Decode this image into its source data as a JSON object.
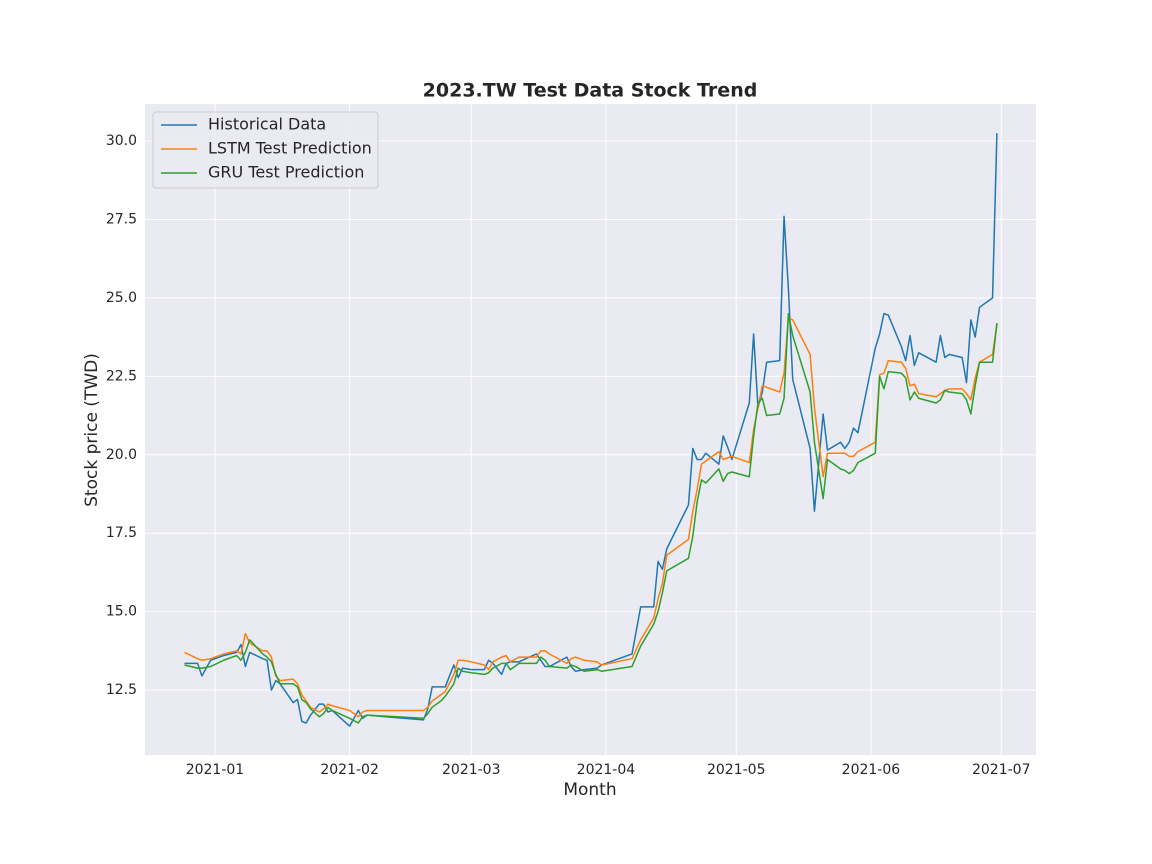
{
  "chart_data": {
    "type": "line",
    "title": "2023.TW  Test Data Stock Trend",
    "x_label": "Month",
    "y_label": "Stock price (TWD)",
    "grid": true,
    "legend": "upper left",
    "xlim": [
      -16.1,
      189.0
    ],
    "xticks": [
      {
        "value": 0,
        "label": "2021-01"
      },
      {
        "value": 31,
        "label": "2021-02"
      },
      {
        "value": 59,
        "label": "2021-03"
      },
      {
        "value": 90,
        "label": "2021-04"
      },
      {
        "value": 120,
        "label": "2021-05"
      },
      {
        "value": 151,
        "label": "2021-06"
      },
      {
        "value": 181,
        "label": "2021-07"
      }
    ],
    "ylim": [
      10.43,
      31.18
    ],
    "yticks": [
      12.5,
      {
        "value": 15,
        "label": "15.0"
      },
      17.5,
      {
        "value": 20,
        "label": "20.0"
      },
      22.5,
      {
        "value": 25,
        "label": "25.0"
      },
      27.5,
      {
        "value": 30,
        "label": "30.0"
      }
    ],
    "x": [
      -7,
      -4,
      -3,
      -1,
      2,
      5,
      6,
      7,
      8,
      11,
      12,
      13,
      14,
      15,
      18,
      19,
      20,
      21,
      22,
      24,
      25,
      26,
      27,
      31,
      33,
      34,
      35,
      48,
      49,
      50,
      52,
      53,
      55,
      56,
      57,
      59,
      62,
      63,
      64,
      66,
      67,
      68,
      70,
      74,
      75,
      76,
      77,
      81,
      82,
      83,
      85,
      88,
      89,
      96,
      98,
      101,
      102,
      103,
      104,
      109,
      110,
      111,
      112,
      113,
      116,
      117,
      118,
      119,
      123,
      124,
      125,
      126,
      127,
      130,
      131,
      132,
      133,
      137,
      138,
      140,
      141,
      144,
      145,
      146,
      147,
      148,
      152,
      153,
      154,
      155,
      158,
      159,
      160,
      161,
      162,
      166,
      167,
      168,
      169,
      172,
      173,
      174,
      175,
      176,
      179,
      180
    ],
    "series": [
      {
        "name": "Historical Data",
        "color": "#1f77b4",
        "values": [
          13.35,
          13.35,
          12.95,
          13.45,
          13.6,
          13.7,
          13.95,
          13.25,
          13.7,
          13.5,
          13.45,
          12.5,
          12.8,
          12.7,
          12.1,
          12.2,
          11.5,
          11.45,
          11.7,
          12.05,
          12.05,
          11.8,
          11.85,
          11.35,
          11.85,
          11.6,
          11.7,
          11.55,
          11.9,
          12.6,
          12.6,
          12.6,
          13.3,
          12.9,
          13.2,
          13.15,
          13.15,
          13.45,
          13.35,
          13.0,
          13.35,
          13.4,
          13.4,
          13.65,
          13.45,
          13.25,
          13.25,
          13.55,
          13.25,
          13.1,
          13.15,
          13.2,
          13.3,
          13.65,
          15.15,
          15.15,
          16.6,
          16.35,
          17.0,
          18.4,
          20.2,
          19.85,
          19.85,
          20.05,
          19.7,
          20.6,
          20.25,
          19.85,
          21.65,
          23.85,
          21.5,
          22.0,
          22.95,
          23.0,
          27.6,
          25.3,
          22.4,
          20.2,
          18.2,
          21.3,
          20.15,
          20.4,
          20.2,
          20.4,
          20.85,
          20.7,
          23.4,
          23.85,
          24.5,
          24.45,
          23.45,
          23.0,
          23.8,
          22.85,
          23.25,
          22.95,
          23.8,
          23.1,
          23.2,
          23.1,
          22.3,
          24.3,
          23.75,
          24.7,
          25.0,
          30.25
        ]
      },
      {
        "name": "LSTM Test Prediction",
        "color": "#ff7f0e",
        "values": [
          13.7,
          13.5,
          13.45,
          13.5,
          13.65,
          13.75,
          13.65,
          14.3,
          14.0,
          13.75,
          13.75,
          13.55,
          12.95,
          12.8,
          12.85,
          12.7,
          12.35,
          12.15,
          11.95,
          11.8,
          11.9,
          12.05,
          12.0,
          11.85,
          11.65,
          11.8,
          11.85,
          11.85,
          11.95,
          12.15,
          12.35,
          12.45,
          13.0,
          13.45,
          13.45,
          13.4,
          13.3,
          13.15,
          13.4,
          13.55,
          13.6,
          13.4,
          13.55,
          13.55,
          13.75,
          13.75,
          13.65,
          13.35,
          13.5,
          13.55,
          13.45,
          13.4,
          13.3,
          13.5,
          14.1,
          14.8,
          15.4,
          15.9,
          16.8,
          17.3,
          18.2,
          18.9,
          19.7,
          19.8,
          20.1,
          19.85,
          19.9,
          19.95,
          19.75,
          20.8,
          21.5,
          22.2,
          22.15,
          22.0,
          22.6,
          24.35,
          24.3,
          23.2,
          21.5,
          19.3,
          20.05,
          20.05,
          20.05,
          19.95,
          19.95,
          20.1,
          20.4,
          22.55,
          22.6,
          23.0,
          22.95,
          22.75,
          22.2,
          22.25,
          21.95,
          21.85,
          21.95,
          22.05,
          22.1,
          22.1,
          21.95,
          21.75,
          22.45,
          22.95,
          23.2,
          24.15
        ]
      },
      {
        "name": "GRU Test Prediction",
        "color": "#2ca02c",
        "values": [
          13.3,
          13.2,
          13.2,
          13.25,
          13.45,
          13.6,
          13.45,
          13.7,
          14.1,
          13.65,
          13.55,
          13.4,
          13.0,
          12.7,
          12.7,
          12.6,
          12.2,
          12.1,
          11.9,
          11.65,
          11.75,
          11.95,
          11.85,
          11.6,
          11.45,
          11.65,
          11.7,
          11.6,
          11.75,
          11.95,
          12.15,
          12.3,
          12.7,
          13.2,
          13.1,
          13.05,
          13.0,
          13.05,
          13.2,
          13.35,
          13.35,
          13.15,
          13.35,
          13.35,
          13.55,
          13.45,
          13.25,
          13.2,
          13.3,
          13.25,
          13.1,
          13.15,
          13.1,
          13.25,
          13.9,
          14.6,
          15.0,
          15.6,
          16.3,
          16.7,
          17.4,
          18.5,
          19.2,
          19.1,
          19.55,
          19.15,
          19.4,
          19.45,
          19.3,
          20.6,
          21.65,
          21.8,
          21.25,
          21.3,
          21.8,
          24.5,
          23.8,
          22.0,
          20.4,
          18.6,
          19.85,
          19.55,
          19.5,
          19.4,
          19.5,
          19.75,
          20.05,
          22.5,
          22.1,
          22.65,
          22.6,
          22.45,
          21.75,
          22.0,
          21.8,
          21.65,
          21.75,
          22.05,
          22.0,
          21.95,
          21.75,
          21.3,
          22.2,
          22.95,
          22.95,
          24.2
        ]
      }
    ]
  }
}
